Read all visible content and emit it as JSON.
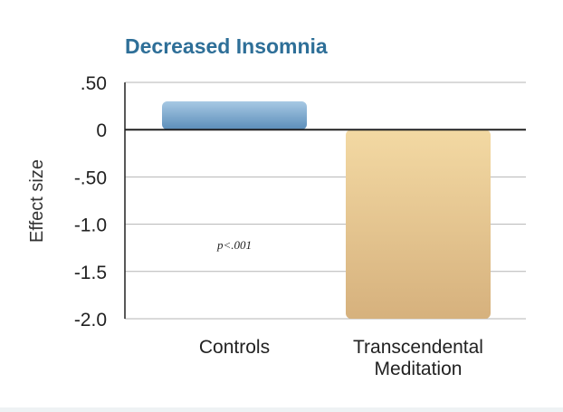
{
  "chart_data": {
    "type": "bar",
    "title": "Decreased Insomnia",
    "xlabel": "",
    "ylabel": "Effect size",
    "categories": [
      "Controls",
      "Transcendental\nMeditation"
    ],
    "values": [
      0.3,
      -2.0
    ],
    "ylim": [
      -2.0,
      0.5
    ],
    "yticks": [
      {
        "value": 0.5,
        "label": ".50"
      },
      {
        "value": 0,
        "label": "0"
      },
      {
        "value": -0.5,
        "label": "-.50"
      },
      {
        "value": -1.0,
        "label": "-1.0"
      },
      {
        "value": -1.5,
        "label": "-1.5"
      },
      {
        "value": -2.0,
        "label": "-2.0"
      }
    ],
    "annotation": "p<.001",
    "grid": true,
    "colors": {
      "title": "#2e6f98",
      "controls_top": "#a7c9e4",
      "controls_bottom": "#5b8db9",
      "tm_top": "#f3d9a3",
      "tm_bottom": "#d6b17d",
      "axis": "#222222",
      "grid": "#b5b5b5"
    }
  }
}
